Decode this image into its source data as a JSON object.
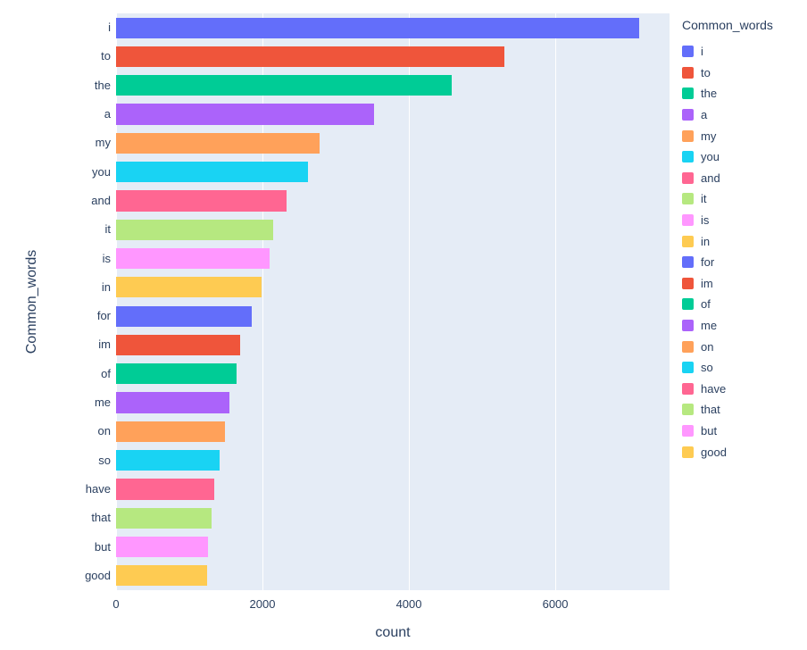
{
  "chart_data": {
    "type": "bar",
    "orientation": "horizontal",
    "title": "",
    "xlabel": "count",
    "ylabel": "Common_words",
    "legend_title": "Common_words",
    "xlim": [
      0,
      7560
    ],
    "xticks": [
      0,
      2000,
      4000,
      6000
    ],
    "grid": true,
    "legend_position": "right",
    "categories": [
      "i",
      "to",
      "the",
      "a",
      "my",
      "you",
      "and",
      "it",
      "is",
      "in",
      "for",
      "im",
      "of",
      "me",
      "on",
      "so",
      "have",
      "that",
      "but",
      "good"
    ],
    "values": [
      7150,
      5300,
      4580,
      3530,
      2780,
      2620,
      2330,
      2150,
      2100,
      1990,
      1850,
      1690,
      1650,
      1550,
      1490,
      1420,
      1340,
      1300,
      1260,
      1240
    ],
    "colors": [
      "#636EFA",
      "#EF553B",
      "#00CC96",
      "#AB63FA",
      "#FFA15A",
      "#19D3F3",
      "#FF6692",
      "#B6E880",
      "#FF97FF",
      "#FECB52",
      "#636EFA",
      "#EF553B",
      "#00CC96",
      "#AB63FA",
      "#FFA15A",
      "#19D3F3",
      "#FF6692",
      "#B6E880",
      "#FF97FF",
      "#FECB52"
    ],
    "plot_bgcolor": "#E5ECF6",
    "paper_bgcolor": "#FFFFFF",
    "font_color": "#2A3F5F",
    "grid_color": "#FFFFFF"
  }
}
